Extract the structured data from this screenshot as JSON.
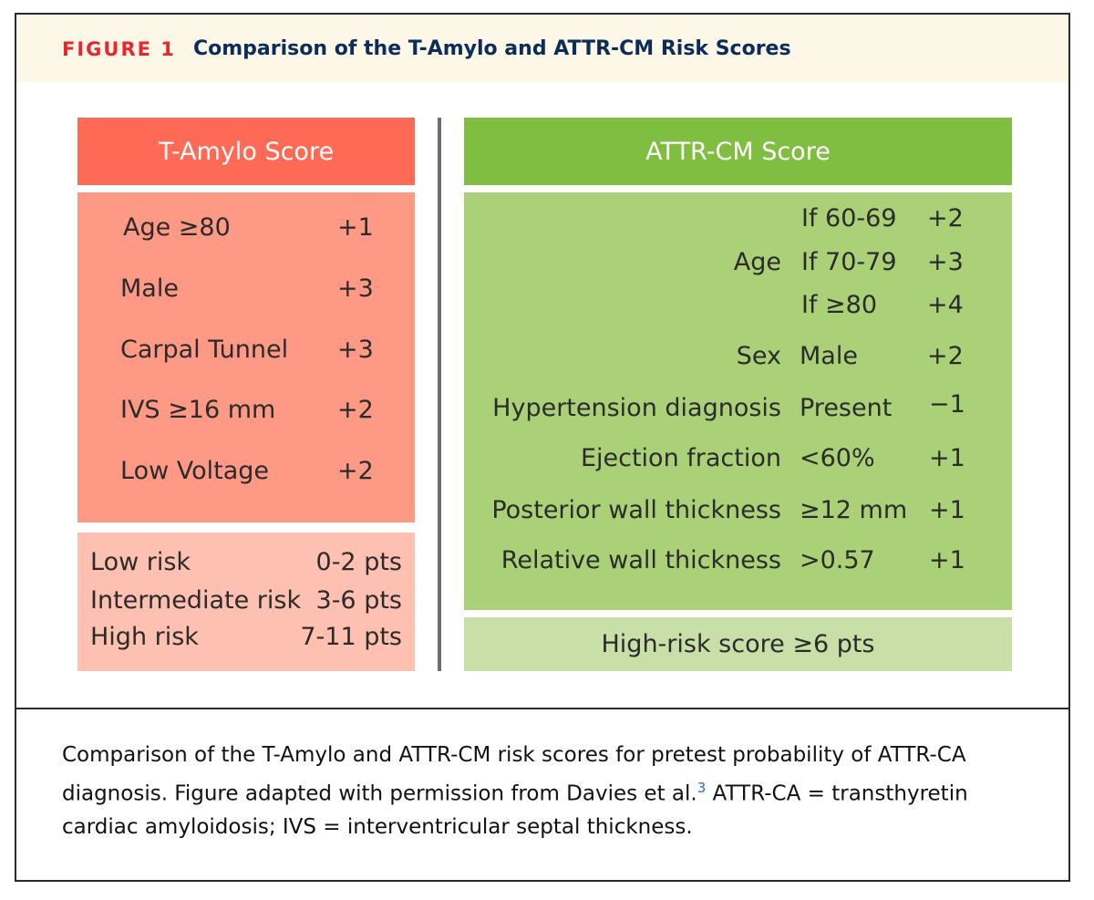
{
  "figure": {
    "label": "FIGURE 1",
    "title": "Comparison of the T-Amylo and ATTR-CM Risk Scores"
  },
  "t_amylo": {
    "header": "T-Amylo Score",
    "criteria": [
      {
        "name": "Age ≥80",
        "points": "+1"
      },
      {
        "name": "Male",
        "points": "+3"
      },
      {
        "name": "Carpal Tunnel",
        "points": "+3"
      },
      {
        "name": "IVS ≥16 mm",
        "points": "+2"
      },
      {
        "name": "Low Voltage",
        "points": "+2"
      }
    ],
    "risk": [
      {
        "level": "Low risk",
        "range": "0-2 pts"
      },
      {
        "level": "Intermediate risk",
        "range": "3-6 pts"
      },
      {
        "level": "High risk",
        "range": "7-11 pts"
      }
    ]
  },
  "attr_cm": {
    "header": "ATTR-CM Score",
    "age_label": "Age",
    "age_rows": [
      {
        "condition": "If 60-69",
        "points": "+2"
      },
      {
        "condition": "If 70-79",
        "points": "+3"
      },
      {
        "condition": "If ≥80",
        "points": "+4"
      }
    ],
    "criteria": [
      {
        "name": "Sex",
        "condition": "Male",
        "points": "+2"
      },
      {
        "name": "Hypertension diagnosis",
        "condition": "Present",
        "points": "−1"
      },
      {
        "name": "Ejection fraction",
        "condition": "<60%",
        "points": "+1"
      },
      {
        "name": "Posterior wall thickness",
        "condition": "≥12 mm",
        "points": "+1"
      },
      {
        "name": "Relative wall thickness",
        "condition": ">0.57",
        "points": "+1"
      }
    ],
    "footer": "High-risk score ≥6 pts"
  },
  "caption": {
    "text_before": "Comparison of the T-Amylo and ATTR-CM risk scores for pretest probability of ATTR-CA diagnosis. Figure adapted with permission from Davies et al.",
    "ref": "3",
    "text_after": " ATTR-CA = transthyretin cardiac amyloidosis; IVS = interventricular septal thickness."
  }
}
